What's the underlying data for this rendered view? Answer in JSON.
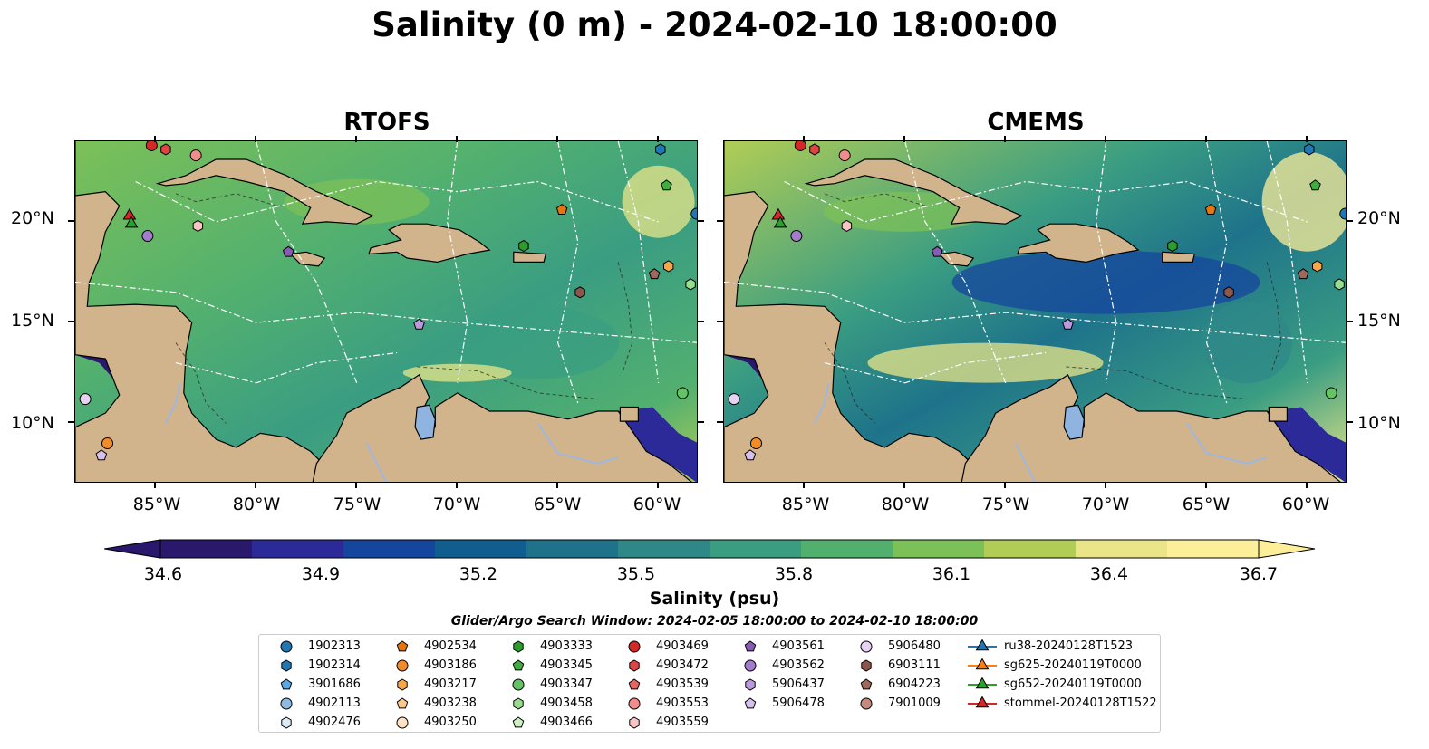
{
  "title": "Salinity (0 m) - 2024-02-10 18:00:00",
  "panels": [
    {
      "title": "RTOFS"
    },
    {
      "title": "CMEMS"
    }
  ],
  "axes": {
    "lat_labels": [
      "20°N",
      "15°N",
      "10°N"
    ],
    "lat_values": [
      20,
      15,
      10
    ],
    "lon_labels": [
      "85°W",
      "80°W",
      "75°W",
      "70°W",
      "65°W",
      "60°W"
    ],
    "lon_values": [
      -85,
      -80,
      -75,
      -70,
      -65,
      -60
    ],
    "lon_range": [
      -89,
      -58
    ],
    "lat_range": [
      7,
      24
    ]
  },
  "colorbar": {
    "label": "Salinity (psu)",
    "ticks": [
      "34.6",
      "34.9",
      "35.2",
      "35.5",
      "35.8",
      "36.1",
      "36.4",
      "36.7"
    ],
    "range": [
      34.6,
      36.7
    ],
    "extend": "both",
    "cmap": "haline",
    "colors": [
      "#2a186c",
      "#2c2a99",
      "#15469d",
      "#0f5e8f",
      "#1e738a",
      "#2f8888",
      "#3a9d82",
      "#52b06f",
      "#7cc058",
      "#b1cd56",
      "#eae688",
      "#fdef9a"
    ]
  },
  "search_window": "Glider/Argo Search Window: 2024-02-05 18:00:00 to 2024-02-10 18:00:00",
  "legend": {
    "columns": [
      [
        {
          "label": "1902313",
          "marker": "circle",
          "color": "#1f77b4"
        },
        {
          "label": "1902314",
          "marker": "hexagon",
          "color": "#1f77b4"
        },
        {
          "label": "3901686",
          "marker": "pentagon",
          "color": "#5aa9e6"
        },
        {
          "label": "4902113",
          "marker": "circle",
          "color": "#8fbbe0"
        },
        {
          "label": "4902476",
          "marker": "hexagon",
          "color": "#dbeaf7"
        }
      ],
      [
        {
          "label": "4902534",
          "marker": "pentagon",
          "color": "#e6750f"
        },
        {
          "label": "4903186",
          "marker": "circle",
          "color": "#f28c28"
        },
        {
          "label": "4903217",
          "marker": "hexagon",
          "color": "#f7a64a"
        },
        {
          "label": "4903238",
          "marker": "pentagon",
          "color": "#fbc98c"
        },
        {
          "label": "4903250",
          "marker": "circle",
          "color": "#fde3c4"
        }
      ],
      [
        {
          "label": "4903333",
          "marker": "hexagon",
          "color": "#2a9d2a"
        },
        {
          "label": "4903345",
          "marker": "pentagon",
          "color": "#3fae3f"
        },
        {
          "label": "4903347",
          "marker": "circle",
          "color": "#63c463"
        },
        {
          "label": "4903458",
          "marker": "hexagon",
          "color": "#98dc8f"
        },
        {
          "label": "4903466",
          "marker": "pentagon",
          "color": "#ccf0c4"
        }
      ],
      [
        {
          "label": "4903469",
          "marker": "circle",
          "color": "#d62728"
        },
        {
          "label": "4903472",
          "marker": "hexagon",
          "color": "#df4444"
        },
        {
          "label": "4903539",
          "marker": "pentagon",
          "color": "#e56464"
        },
        {
          "label": "4903553",
          "marker": "circle",
          "color": "#f08c8c"
        },
        {
          "label": "4903559",
          "marker": "hexagon",
          "color": "#f8c4c4"
        }
      ],
      [
        {
          "label": "4903561",
          "marker": "pentagon",
          "color": "#8a5bb5"
        },
        {
          "label": "4903562",
          "marker": "circle",
          "color": "#a47ccc"
        },
        {
          "label": "5906437",
          "marker": "hexagon",
          "color": "#bb9adb"
        },
        {
          "label": "5906478",
          "marker": "pentagon",
          "color": "#d6c0ec"
        }
      ],
      [
        {
          "label": "5906480",
          "marker": "circle",
          "color": "#e8d2f4"
        },
        {
          "label": "6903111",
          "marker": "hexagon",
          "color": "#8c564b"
        },
        {
          "label": "6904223",
          "marker": "pentagon",
          "color": "#a0685c"
        },
        {
          "label": "7901009",
          "marker": "circle",
          "color": "#c48a7e"
        }
      ],
      [
        {
          "label": "ru38-20240128T1523",
          "marker": "triangle",
          "color": "#1f77b4"
        },
        {
          "label": "sg625-20240119T0000",
          "marker": "triangle",
          "color": "#ff7f0e"
        },
        {
          "label": "sg652-20240119T0000",
          "marker": "triangle",
          "color": "#2ca02c"
        },
        {
          "label": "stommel-20240128T1522",
          "marker": "triangle",
          "color": "#d62728"
        }
      ]
    ]
  },
  "floats": [
    {
      "lon": -58.1,
      "lat": 20.4,
      "marker": "circle",
      "color": "#1f77b4"
    },
    {
      "lon": -59.9,
      "lat": 23.6,
      "marker": "hexagon",
      "color": "#1f77b4"
    },
    {
      "lon": -64.8,
      "lat": 20.6,
      "marker": "pentagon",
      "color": "#e6750f"
    },
    {
      "lon": -58.4,
      "lat": 16.9,
      "marker": "hexagon",
      "color": "#98dc8f"
    },
    {
      "lon": -59.6,
      "lat": 21.8,
      "marker": "pentagon",
      "color": "#3fae3f"
    },
    {
      "lon": -59.5,
      "lat": 17.8,
      "marker": "hexagon",
      "color": "#f7a64a"
    },
    {
      "lon": -60.2,
      "lat": 17.4,
      "marker": "pentagon",
      "color": "#a0685c"
    },
    {
      "lon": -63.9,
      "lat": 16.5,
      "marker": "hexagon",
      "color": "#8c564b"
    },
    {
      "lon": -66.7,
      "lat": 18.8,
      "marker": "hexagon",
      "color": "#2a9d2a"
    },
    {
      "lon": -78.4,
      "lat": 18.5,
      "marker": "pentagon",
      "color": "#8a5bb5"
    },
    {
      "lon": -71.9,
      "lat": 14.9,
      "marker": "pentagon",
      "color": "#bb9adb"
    },
    {
      "lon": -84.5,
      "lat": 23.6,
      "marker": "hexagon",
      "color": "#df4444"
    },
    {
      "lon": -83.0,
      "lat": 23.3,
      "marker": "circle",
      "color": "#f08c8c"
    },
    {
      "lon": -85.2,
      "lat": 23.8,
      "marker": "circle",
      "color": "#d62728"
    },
    {
      "lon": -82.9,
      "lat": 19.8,
      "marker": "hexagon",
      "color": "#f8c4c4"
    },
    {
      "lon": -85.4,
      "lat": 19.3,
      "marker": "circle",
      "color": "#a47ccc"
    },
    {
      "lon": -86.3,
      "lat": 20.3,
      "marker": "triangle",
      "color": "#d62728"
    },
    {
      "lon": -86.2,
      "lat": 19.9,
      "marker": "triangle",
      "color": "#2ca02c"
    },
    {
      "lon": -88.5,
      "lat": 11.2,
      "marker": "circle",
      "color": "#e8d2f4"
    },
    {
      "lon": -87.4,
      "lat": 9.0,
      "marker": "circle",
      "color": "#f28c28"
    },
    {
      "lon": -87.7,
      "lat": 8.4,
      "marker": "pentagon",
      "color": "#d6c0ec"
    },
    {
      "lon": -58.8,
      "lat": 11.5,
      "marker": "circle",
      "color": "#63c463"
    }
  ]
}
